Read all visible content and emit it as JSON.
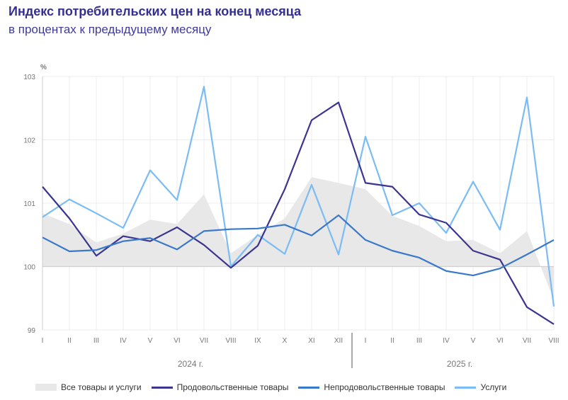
{
  "header": {
    "title": "Индекс потребительских цен на конец месяца",
    "subtitle": "в процентах к предыдущему месяцу"
  },
  "chart_data": {
    "type": "line",
    "title": "Индекс потребительских цен на конец месяца",
    "subtitle": "в процентах к предыдущему месяцу",
    "ylabel": "%",
    "ylim": [
      99,
      103
    ],
    "yticks": [
      "99",
      "100",
      "101",
      "102",
      "103"
    ],
    "grid": true,
    "legend_position": "bottom",
    "categories": [
      "I",
      "II",
      "III",
      "IV",
      "V",
      "VI",
      "VII",
      "VIII",
      "IX",
      "X",
      "XI",
      "XII",
      "I",
      "II",
      "III",
      "IV",
      "V",
      "VI",
      "VII",
      "VIII"
    ],
    "year_groups": [
      {
        "label": "2024 г.",
        "from": 0,
        "to": 11
      },
      {
        "label": "2025 г.",
        "from": 12,
        "to": 19
      }
    ],
    "series": [
      {
        "name": "Все товары и услуги",
        "style": "area",
        "color": "#e8e8e8",
        "values": [
          100.84,
          100.67,
          100.38,
          100.52,
          100.74,
          100.67,
          101.14,
          100.21,
          100.5,
          100.76,
          101.41,
          101.32,
          101.22,
          100.8,
          100.64,
          100.4,
          100.42,
          100.21,
          100.56,
          99.47
        ]
      },
      {
        "name": "Продовольственные товары",
        "style": "line",
        "color": "#3b3591",
        "values": [
          101.26,
          100.76,
          100.17,
          100.48,
          100.4,
          100.62,
          100.34,
          99.98,
          100.33,
          101.22,
          102.31,
          102.59,
          101.32,
          101.26,
          100.82,
          100.69,
          100.25,
          100.11,
          99.36,
          99.09
        ]
      },
      {
        "name": "Непродовольственные товары",
        "style": "line",
        "color": "#3a78c9",
        "values": [
          100.46,
          100.24,
          100.26,
          100.4,
          100.45,
          100.27,
          100.56,
          100.59,
          100.6,
          100.66,
          100.49,
          100.81,
          100.42,
          100.25,
          100.14,
          99.93,
          99.86,
          99.97,
          100.19,
          100.42
        ]
      },
      {
        "name": "Услуги",
        "style": "line",
        "color": "#7bbcf5",
        "values": [
          100.78,
          101.06,
          100.84,
          100.61,
          101.52,
          101.05,
          102.84,
          100.0,
          100.5,
          100.2,
          101.29,
          100.19,
          102.05,
          100.81,
          101.0,
          100.53,
          101.34,
          100.58,
          102.67,
          99.37
        ]
      }
    ]
  }
}
